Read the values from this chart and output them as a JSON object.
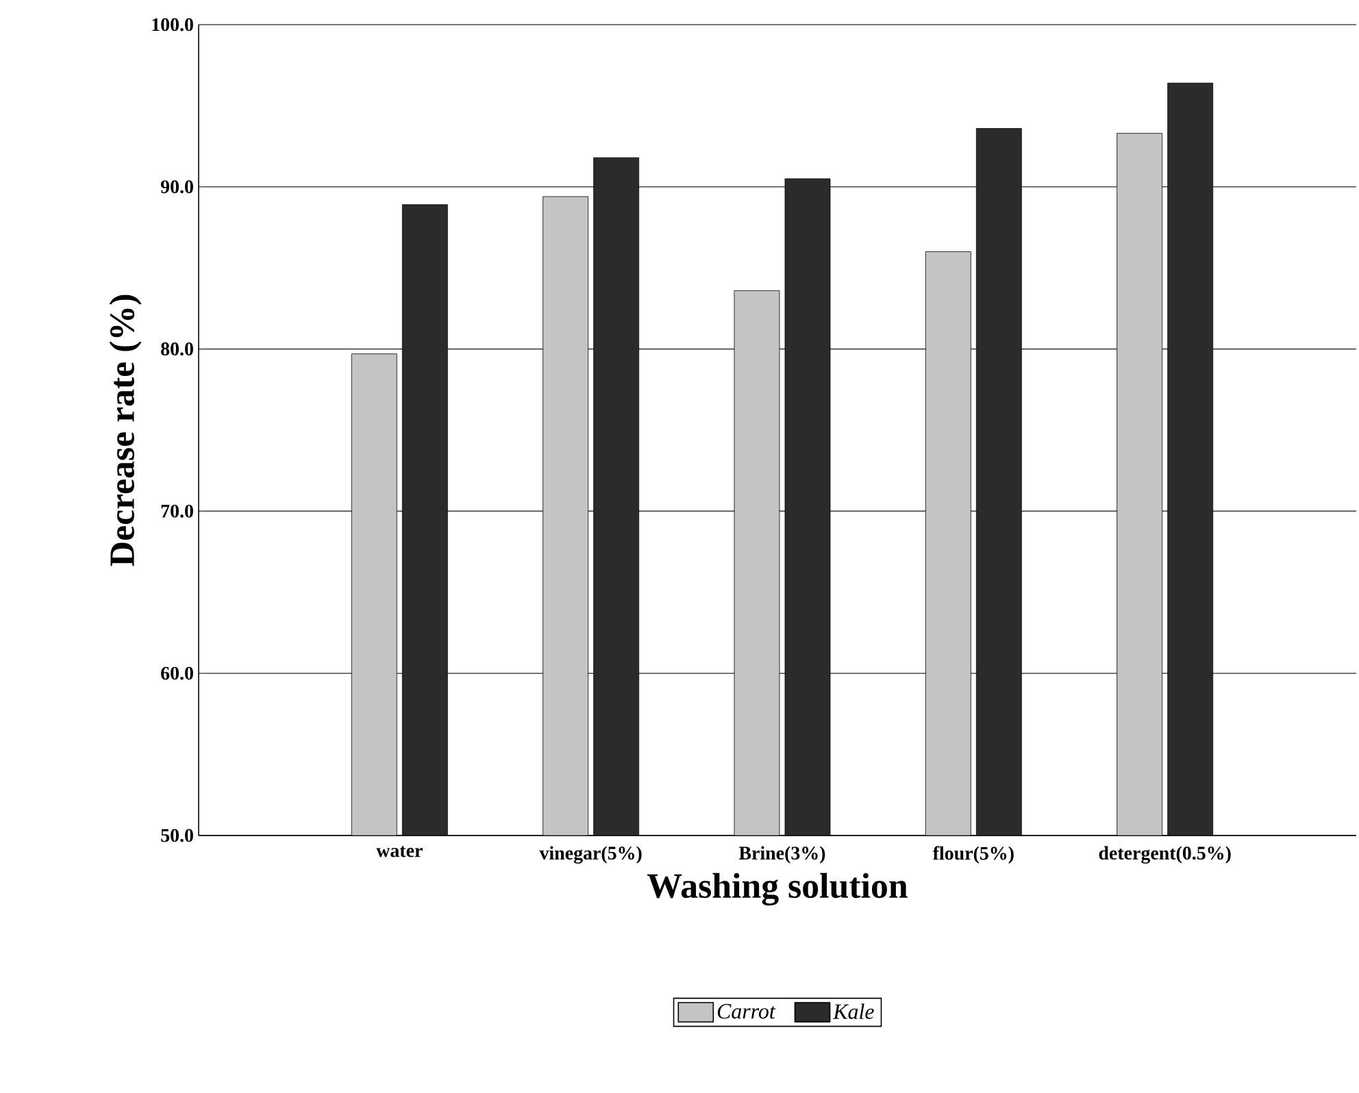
{
  "chart_data": {
    "type": "bar",
    "xlabel": "Washing solution",
    "ylabel": "Decrease rate (%)",
    "categories": [
      "water",
      "vinegar(5%)",
      "Brine(3%)",
      "flour(5%)",
      "detergent(0.5%)"
    ],
    "series": [
      {
        "name": "Carrot",
        "color": "#c4c4c4",
        "values": [
          79.7,
          89.4,
          83.6,
          86.0,
          93.3
        ]
      },
      {
        "name": "Kale",
        "color": "#2b2b2b",
        "values": [
          88.9,
          91.8,
          90.5,
          93.6,
          96.4
        ]
      }
    ],
    "ylim": [
      50,
      100
    ],
    "yticks": [
      {
        "value": 50,
        "label": "50.0"
      },
      {
        "value": 60,
        "label": "60.0"
      },
      {
        "value": 70,
        "label": "70.0"
      },
      {
        "value": 80,
        "label": "80.0"
      },
      {
        "value": 90,
        "label": "90.0"
      },
      {
        "value": 100,
        "label": "100.0"
      }
    ],
    "grid": "y",
    "legend": "bottom"
  }
}
